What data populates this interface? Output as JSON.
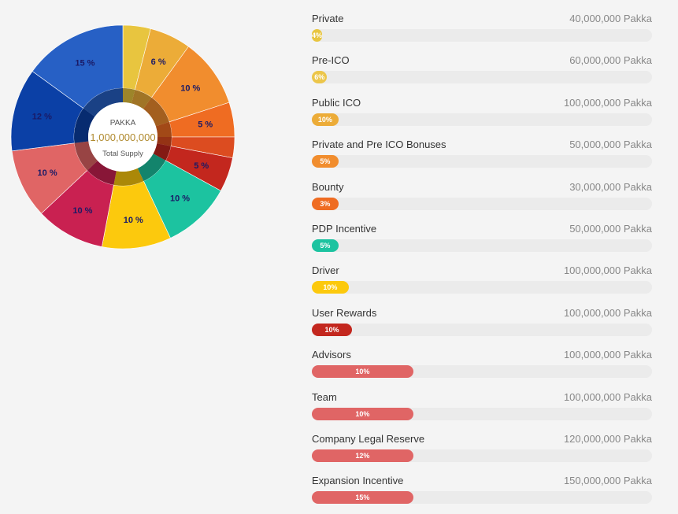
{
  "chart_data": [
    {
      "type": "pie",
      "center": {
        "top": "PAKKA",
        "value": "1,000,000,000",
        "bottom": "Total Supply"
      },
      "slices": [
        {
          "value": 4,
          "color": "#e8c53f",
          "label": ""
        },
        {
          "value": 6,
          "color": "#ecac38",
          "label": "6 %"
        },
        {
          "value": 10,
          "color": "#f18d2e",
          "label": "10 %"
        },
        {
          "value": 5,
          "color": "#ef6c22",
          "label": "5 %"
        },
        {
          "value": 3,
          "color": "#dc4c20",
          "label": ""
        },
        {
          "value": 5,
          "color": "#c3271e",
          "label": "5 %"
        },
        {
          "value": 10,
          "color": "#1cc3a0",
          "label": "10 %"
        },
        {
          "value": 10,
          "color": "#fcc90d",
          "label": "10 %"
        },
        {
          "value": 10,
          "color": "#c92151",
          "label": "10 %"
        },
        {
          "value": 10,
          "color": "#e06565",
          "label": "10 %"
        },
        {
          "value": 12,
          "color": "#0b40a6",
          "label": "12 %"
        },
        {
          "value": 15,
          "color": "#2760c5",
          "label": "15 %"
        }
      ]
    },
    {
      "type": "bar",
      "orientation": "horizontal",
      "unit": "Pakka",
      "categories": [
        "Private",
        "Pre-ICO",
        "Public ICO",
        "Private and Pre ICO Bonuses",
        "Bounty",
        "PDP Incentive",
        "Driver",
        "User Rewards",
        "Advisors",
        "Team",
        "Company Legal Reserve",
        "Expansion Incentive"
      ],
      "amounts": [
        "40,000,000 Pakka",
        "60,000,000 Pakka",
        "100,000,000 Pakka",
        "50,000,000 Pakka",
        "30,000,000 Pakka",
        "50,000,000 Pakka",
        "100,000,000 Pakka",
        "100,000,000 Pakka",
        "100,000,000 Pakka",
        "100,000,000 Pakka",
        "120,000,000 Pakka",
        "150,000,000 Pakka"
      ],
      "percent_labels": [
        "4%",
        "6%",
        "10%",
        "5%",
        "3%",
        "5%",
        "10%",
        "10%",
        "10%",
        "10%",
        "12%",
        "15%"
      ],
      "fill_fraction": [
        0.03,
        0.045,
        0.078,
        0.078,
        0.078,
        0.078,
        0.108,
        0.118,
        0.298,
        0.298,
        0.298,
        0.298
      ],
      "colors": [
        "#e8c53f",
        "#ecc64a",
        "#ecac38",
        "#f18d2e",
        "#ef6c22",
        "#1cc3a0",
        "#fcc90d",
        "#c3271e",
        "#e06565",
        "#e06565",
        "#e06565",
        "#e06565"
      ]
    }
  ]
}
